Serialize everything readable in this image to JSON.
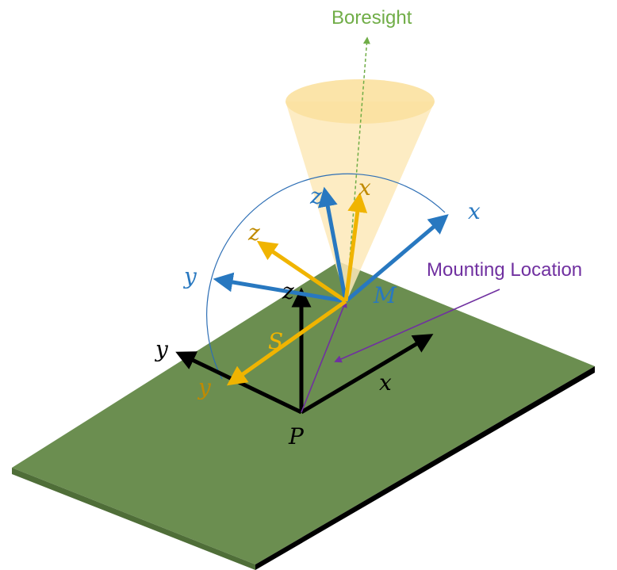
{
  "labels": {
    "boresight": "Boresight",
    "mounting_location": "Mounting Location",
    "platform_origin": "P",
    "mount_point": "M",
    "sensor_vector": "S"
  },
  "axes": {
    "platform": {
      "x": "x",
      "y": "y",
      "z": "z"
    },
    "mount": {
      "x": "x",
      "y": "y",
      "z": "z"
    },
    "sensor": {
      "x": "x",
      "y": "y",
      "z": "z"
    }
  },
  "colors": {
    "platform_surface": "#6b8e50",
    "platform_edge": "#000000",
    "platform_axes": "#000000",
    "mount_axes": "#2878c0",
    "sensor_axes": "#f0b400",
    "sensor_label": "#c08a00",
    "boresight": "#70ad47",
    "mounting_location": "#7030a0",
    "fov_cone": "#fde9b8",
    "arc": "#2e6fb5"
  }
}
